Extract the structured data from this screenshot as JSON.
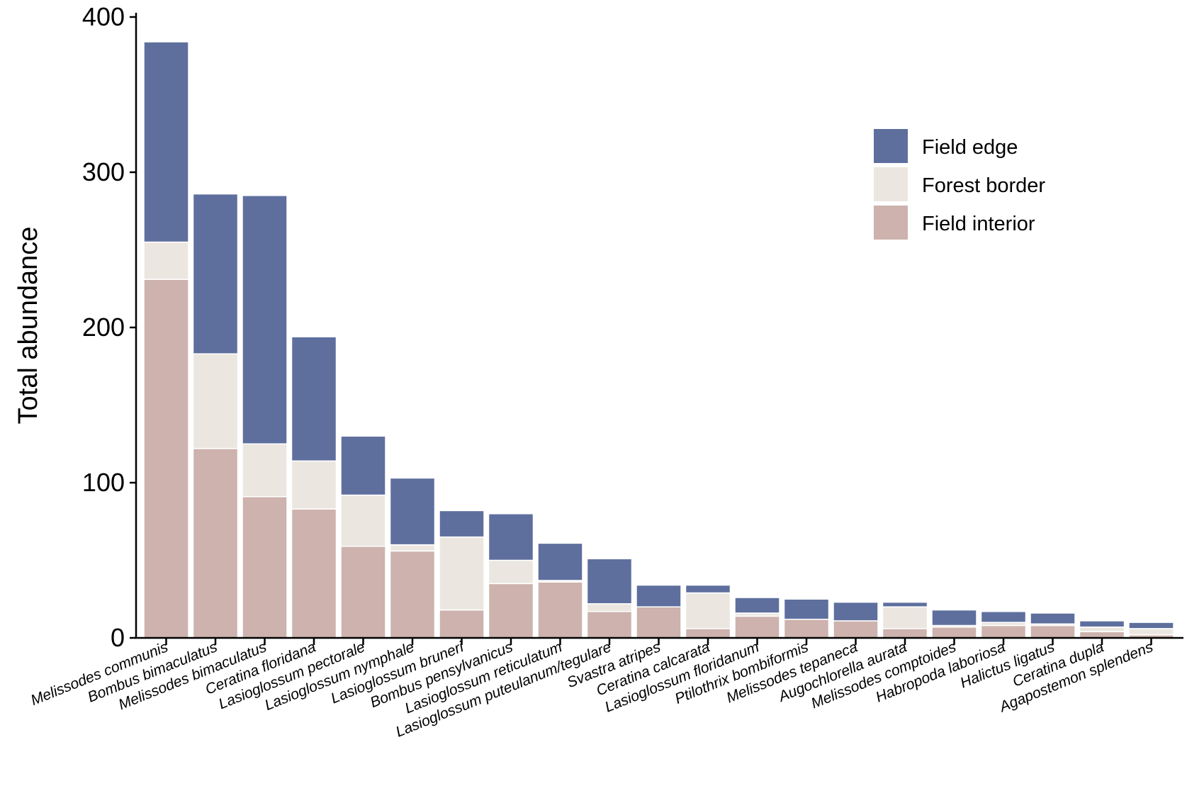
{
  "chart_data": {
    "type": "bar",
    "stacked": true,
    "title": "",
    "xlabel": "",
    "ylabel": "Total abundance",
    "ylim": [
      0,
      400
    ],
    "yticks": [
      0,
      100,
      200,
      300,
      400
    ],
    "grid": false,
    "legend_position": "top-right",
    "categories": [
      "Melissodes communis",
      "Bombus bimaculatus",
      "Melissodes bimaculatus",
      "Ceratina floridana",
      "Lasioglossum pectorale",
      "Lasioglossum nymphale",
      "Lasioglossum bruneri",
      "Bombus pensylvanicus",
      "Lasioglossum reticulatum",
      "Lasioglossum puteulanum/tegulare",
      "Svastra atripes",
      "Ceratina calcarata",
      "Lasioglossum floridanum",
      "Ptilothrix bombiformis",
      "Melissodes tepaneca",
      "Augochlorella aurata",
      "Melissodes comptoides",
      "Habropoda laboriosa",
      "Halictus ligatus",
      "Ceratina dupla",
      "Agapostemon splendens"
    ],
    "series": [
      {
        "name": "Field interior",
        "color": "#cdb2ad",
        "values": [
          231,
          122,
          91,
          83,
          59,
          56,
          18,
          35,
          36,
          17,
          20,
          6,
          14,
          12,
          11,
          6,
          7,
          8,
          8,
          4,
          2
        ]
      },
      {
        "name": "Forest border",
        "color": "#ebe7e0",
        "values": [
          24,
          61,
          34,
          31,
          33,
          4,
          47,
          15,
          1,
          5,
          0,
          23,
          2,
          0,
          0,
          14,
          1,
          2,
          1,
          3,
          4
        ]
      },
      {
        "name": "Field edge",
        "color": "#5e6f9e",
        "values": [
          129,
          103,
          160,
          80,
          38,
          43,
          17,
          30,
          24,
          29,
          14,
          5,
          10,
          13,
          12,
          3,
          10,
          7,
          7,
          4,
          4
        ]
      }
    ],
    "legend_order": [
      "Field edge",
      "Forest border",
      "Field interior"
    ]
  }
}
